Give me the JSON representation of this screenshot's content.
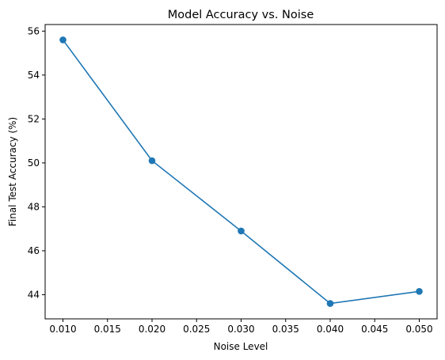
{
  "chart_data": {
    "type": "line",
    "title": "Model Accuracy vs. Noise",
    "xlabel": "Noise Level",
    "ylabel": "Final Test Accuracy (%)",
    "x": [
      0.01,
      0.02,
      0.03,
      0.04,
      0.05
    ],
    "series": [
      {
        "values": [
          55.6,
          50.1,
          46.9,
          43.6,
          44.15
        ],
        "color": "#1f77b4",
        "marker": "circle"
      }
    ],
    "xlim": [
      0.008,
      0.052
    ],
    "ylim": [
      42.9,
      56.3
    ],
    "xticks": [
      "0.010",
      "0.015",
      "0.020",
      "0.025",
      "0.030",
      "0.035",
      "0.040",
      "0.045",
      "0.050"
    ],
    "yticks": [
      "44",
      "46",
      "48",
      "50",
      "52",
      "54",
      "56"
    ],
    "grid": false,
    "legend": "none"
  }
}
